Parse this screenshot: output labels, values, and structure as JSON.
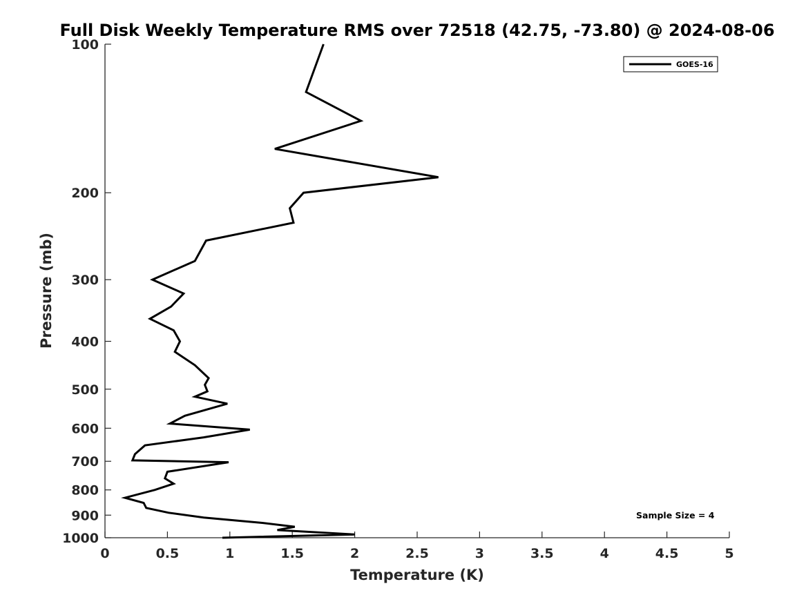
{
  "chart_data": {
    "type": "line",
    "title": "Full Disk Weekly Temperature RMS over 72518 (42.75, -73.80) @ 2024-08-06",
    "xlabel": "Temperature (K)",
    "ylabel": "Pressure (mb)",
    "xlim": [
      0,
      5
    ],
    "ylim": [
      100,
      1000
    ],
    "y_scale": "log",
    "y_reversed": true,
    "grid": false,
    "legend_position": "top-right",
    "x_ticks": [
      "0",
      "0.5",
      "1",
      "1.5",
      "2",
      "2.5",
      "3",
      "3.5",
      "4",
      "4.5",
      "5"
    ],
    "y_ticks": [
      "100",
      "200",
      "300",
      "400",
      "500",
      "600",
      "700",
      "800",
      "900",
      "1000"
    ],
    "annotation": "Sample Size = 4",
    "series": [
      {
        "name": "GOES-16",
        "color": "#000000",
        "points": [
          [
            1.75,
            100
          ],
          [
            1.61,
            125
          ],
          [
            2.05,
            143
          ],
          [
            1.36,
            163
          ],
          [
            2.67,
            186
          ],
          [
            1.59,
            200
          ],
          [
            1.48,
            215
          ],
          [
            1.51,
            230
          ],
          [
            0.81,
            250
          ],
          [
            0.72,
            275
          ],
          [
            0.38,
            300
          ],
          [
            0.63,
            320
          ],
          [
            0.53,
            340
          ],
          [
            0.36,
            360
          ],
          [
            0.55,
            380
          ],
          [
            0.6,
            400
          ],
          [
            0.56,
            420
          ],
          [
            0.72,
            447
          ],
          [
            0.83,
            475
          ],
          [
            0.8,
            490
          ],
          [
            0.82,
            505
          ],
          [
            0.72,
            518
          ],
          [
            0.98,
            535
          ],
          [
            0.64,
            566
          ],
          [
            0.52,
            587
          ],
          [
            1.16,
            604
          ],
          [
            0.79,
            626
          ],
          [
            0.32,
            650
          ],
          [
            0.24,
            677
          ],
          [
            0.22,
            697
          ],
          [
            0.99,
            703
          ],
          [
            0.5,
            735
          ],
          [
            0.48,
            758
          ],
          [
            0.55,
            777
          ],
          [
            0.4,
            800
          ],
          [
            0.16,
            830
          ],
          [
            0.31,
            850
          ],
          [
            0.33,
            870
          ],
          [
            0.51,
            890
          ],
          [
            0.79,
            910
          ],
          [
            1.26,
            933
          ],
          [
            1.52,
            950
          ],
          [
            1.38,
            965
          ],
          [
            2.0,
            985
          ],
          [
            0.94,
            1000
          ]
        ]
      }
    ]
  }
}
